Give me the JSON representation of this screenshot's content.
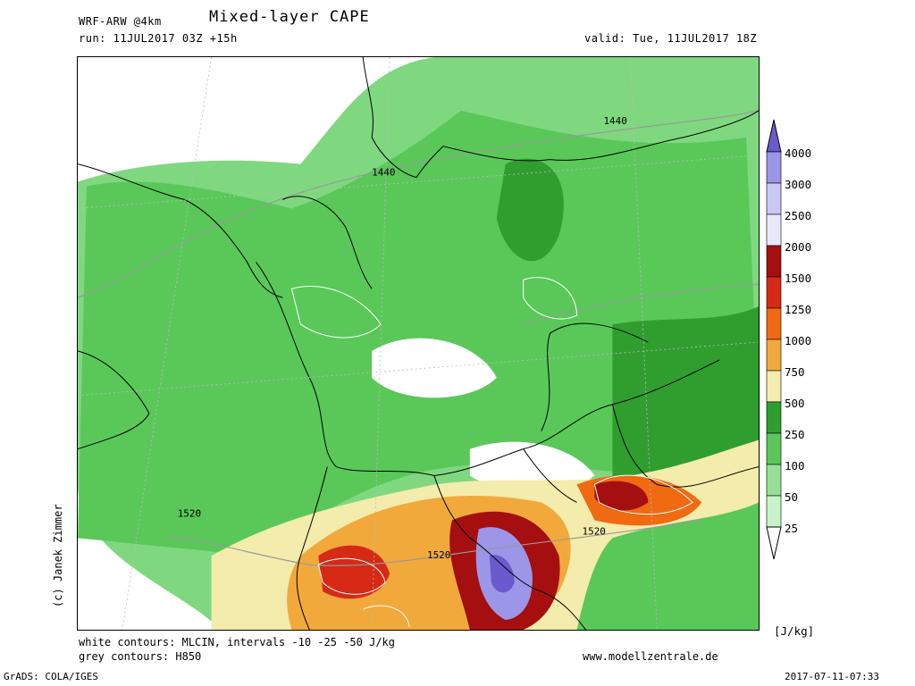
{
  "header": {
    "model": "WRF-ARW @4km",
    "title": "Mixed-layer CAPE",
    "run": "run: 11JUL2017 03Z +15h",
    "valid": "valid: Tue, 11JUL2017 18Z"
  },
  "colorbar": {
    "unit": "[J/kg]",
    "levels": [
      "4000",
      "3000",
      "2500",
      "2000",
      "1500",
      "1250",
      "1000",
      "750",
      "500",
      "250",
      "100",
      "50",
      "25"
    ],
    "colors": [
      "#6a5acd",
      "#9b96e8",
      "#c9c8f5",
      "#e8e8fb",
      "#a50f0f",
      "#d62a16",
      "#f06a12",
      "#f2a93b",
      "#f3ecac",
      "#2f9e2f",
      "#59c859",
      "#96e096",
      "#c8f2c8",
      "#ffffff"
    ]
  },
  "map": {
    "contour_labels": [
      "1440",
      "1440",
      "1520",
      "1520",
      "1520"
    ]
  },
  "footer": {
    "line1": "white contours: MLCIN, intervals -10 -25 -50 J/kg",
    "line2": "grey contours: H850",
    "site": "www.modellzentrale.de",
    "grads": "GrADS: COLA/IGES",
    "timestamp": "2017-07-11-07:33",
    "credit": "(c) Janek Zimmer"
  }
}
